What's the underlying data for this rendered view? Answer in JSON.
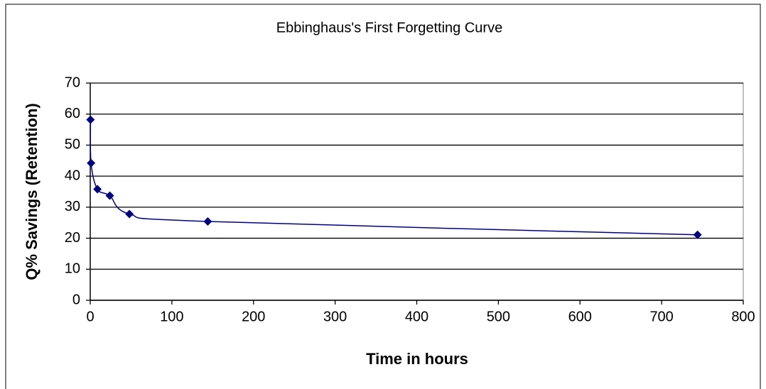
{
  "chart_data": {
    "type": "scatter",
    "line": "smooth",
    "title": "Ebbinghaus's First Forgetting Curve",
    "xlabel": "Time in hours",
    "ylabel": "Q% Savings (Retention)",
    "x": [
      0.33,
      1,
      8.8,
      24,
      48,
      144,
      744
    ],
    "values": [
      58.2,
      44.2,
      35.8,
      33.7,
      27.8,
      25.4,
      21.1
    ],
    "color": "#000080",
    "xlim": [
      0,
      800
    ],
    "xticks": [
      0,
      100,
      200,
      300,
      400,
      500,
      600,
      700,
      800
    ],
    "ylim": [
      0,
      70
    ],
    "yticks": [
      0,
      10,
      20,
      30,
      40,
      50,
      60,
      70
    ],
    "grid": true
  }
}
